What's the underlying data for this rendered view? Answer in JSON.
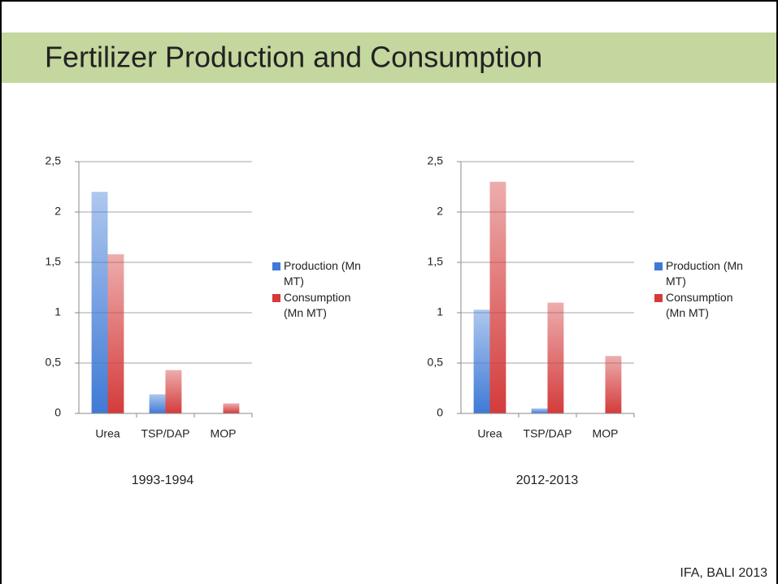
{
  "title": "Fertilizer Production and Consumption",
  "footer": "IFA, BALI 2013",
  "chart_data": [
    {
      "type": "bar",
      "xlabel": "1993-1994",
      "categories": [
        "Urea",
        "TSP/DAP",
        "MOP"
      ],
      "series": [
        {
          "name": "Production (Mn MT)",
          "color": "#3f7ad6",
          "values": [
            2.2,
            0.19,
            0
          ]
        },
        {
          "name": "Consumption (Mn MT)",
          "color": "#d43b3b",
          "values": [
            1.58,
            0.43,
            0.1
          ]
        }
      ],
      "ylim": [
        0,
        2.5
      ],
      "yticks": [
        0,
        {
          "value": 0.5,
          "label": "0,5"
        },
        1,
        {
          "value": 1.5,
          "label": "1,5"
        },
        2,
        {
          "value": 2.5,
          "label": "2,5"
        }
      ],
      "grid": true,
      "legend": "right"
    },
    {
      "type": "bar",
      "xlabel": "2012-2013",
      "categories": [
        "Urea",
        "TSP/DAP",
        "MOP"
      ],
      "series": [
        {
          "name": "Production (Mn MT)",
          "color": "#3f7ad6",
          "values": [
            1.03,
            0.05,
            0
          ]
        },
        {
          "name": "Consumption (Mn MT)",
          "color": "#d43b3b",
          "values": [
            2.3,
            1.1,
            0.57
          ]
        }
      ],
      "ylim": [
        0,
        2.5
      ],
      "yticks": [
        0,
        {
          "value": 0.5,
          "label": "0,5"
        },
        1,
        {
          "value": 1.5,
          "label": "1,5"
        },
        2,
        {
          "value": 2.5,
          "label": "2,5"
        }
      ],
      "grid": true,
      "legend": "right"
    }
  ]
}
